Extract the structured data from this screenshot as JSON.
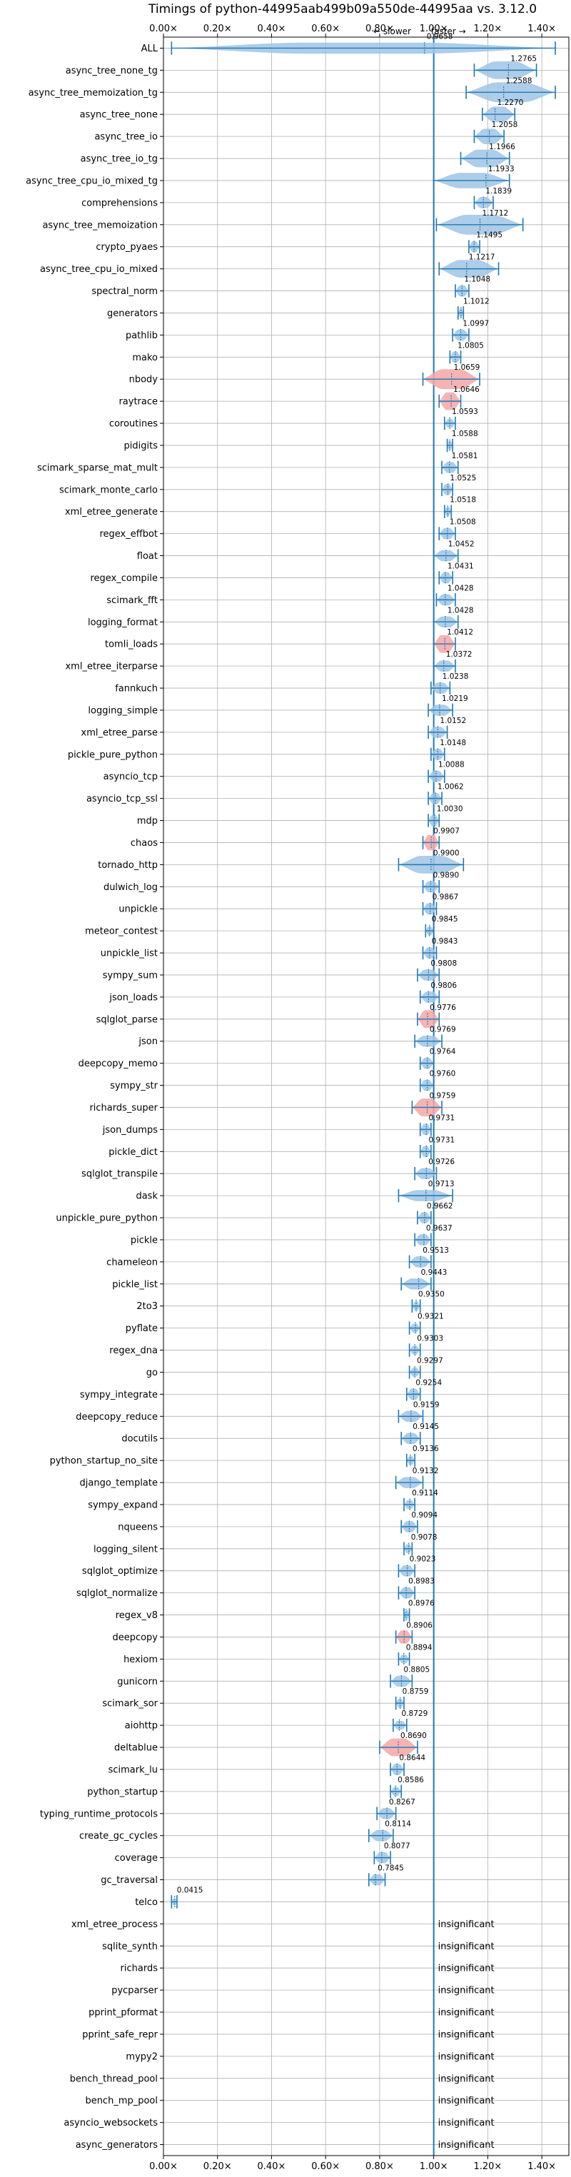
{
  "chart_data": {
    "type": "violin",
    "title": "Timings of python-44995aab499b09a550de-44995aa vs. 3.12.0",
    "annotation_slower": "← slower",
    "annotation_faster": "faster →",
    "reference_value": 1.0,
    "xlim": [
      0.0,
      1.5
    ],
    "x_ticks": [
      {
        "value": 0.0,
        "label": "0.00×"
      },
      {
        "value": 0.2,
        "label": "0.20×"
      },
      {
        "value": 0.4,
        "label": "0.40×"
      },
      {
        "value": 0.6,
        "label": "0.60×"
      },
      {
        "value": 0.8,
        "label": "0.80×"
      },
      {
        "value": 1.0,
        "label": "1.00×"
      },
      {
        "value": 1.2,
        "label": "1.20×"
      },
      {
        "value": 1.4,
        "label": "1.40×"
      }
    ],
    "grid": true,
    "colors": {
      "violin": "#9fc4e4",
      "highlight_violin": "#f4a6a6",
      "line": "#1f77b4",
      "grid": "#b0b0b0"
    },
    "insignificant_label": "insignificant",
    "rows": [
      {
        "name": "ALL",
        "value": 0.9658,
        "label": "0.9658",
        "lo": 0.03,
        "hi": 1.45,
        "w": 0.5
      },
      {
        "name": "async_tree_none_tg",
        "value": 1.2765,
        "label": "1.2765",
        "lo": 1.15,
        "hi": 1.38,
        "w": 0.8
      },
      {
        "name": "async_tree_memoization_tg",
        "value": 1.2588,
        "label": "1.2588",
        "lo": 1.12,
        "hi": 1.45,
        "w": 0.9
      },
      {
        "name": "async_tree_none",
        "value": 1.227,
        "label": "1.2270",
        "lo": 1.18,
        "hi": 1.3,
        "w": 0.7
      },
      {
        "name": "async_tree_io",
        "value": 1.2058,
        "label": "1.2058",
        "lo": 1.15,
        "hi": 1.26,
        "w": 0.7
      },
      {
        "name": "async_tree_io_tg",
        "value": 1.1966,
        "label": "1.1966",
        "lo": 1.1,
        "hi": 1.28,
        "w": 0.8
      },
      {
        "name": "async_tree_cpu_io_mixed_tg",
        "value": 1.1933,
        "label": "1.1933",
        "lo": 1.0,
        "hi": 1.28,
        "w": 0.7
      },
      {
        "name": "comprehensions",
        "value": 1.1839,
        "label": "1.1839",
        "lo": 1.15,
        "hi": 1.22,
        "w": 0.5
      },
      {
        "name": "async_tree_memoization",
        "value": 1.1712,
        "label": "1.1712",
        "lo": 1.01,
        "hi": 1.33,
        "w": 0.9
      },
      {
        "name": "crypto_pyaes",
        "value": 1.1495,
        "label": "1.1495",
        "lo": 1.13,
        "hi": 1.17,
        "w": 0.5
      },
      {
        "name": "async_tree_cpu_io_mixed",
        "value": 1.1217,
        "label": "1.1217",
        "lo": 1.02,
        "hi": 1.24,
        "w": 0.8
      },
      {
        "name": "spectral_norm",
        "value": 1.1048,
        "label": "1.1048",
        "lo": 1.08,
        "hi": 1.13,
        "w": 0.5
      },
      {
        "name": "generators",
        "value": 1.1012,
        "label": "1.1012",
        "lo": 1.09,
        "hi": 1.11,
        "w": 0.4
      },
      {
        "name": "pathlib",
        "value": 1.0997,
        "label": "1.0997",
        "lo": 1.07,
        "hi": 1.13,
        "w": 0.5
      },
      {
        "name": "mako",
        "value": 1.0805,
        "label": "1.0805",
        "lo": 1.06,
        "hi": 1.1,
        "w": 0.5
      },
      {
        "name": "nbody",
        "value": 1.0659,
        "label": "1.0659",
        "lo": 0.96,
        "hi": 1.17,
        "w": 0.9,
        "red": true
      },
      {
        "name": "raytrace",
        "value": 1.0646,
        "label": "1.0646",
        "lo": 1.02,
        "hi": 1.1,
        "w": 0.8,
        "red": true
      },
      {
        "name": "coroutines",
        "value": 1.0593,
        "label": "1.0593",
        "lo": 1.04,
        "hi": 1.08,
        "w": 0.4
      },
      {
        "name": "pidigits",
        "value": 1.0588,
        "label": "1.0588",
        "lo": 1.05,
        "hi": 1.07,
        "w": 0.4
      },
      {
        "name": "scimark_sparse_mat_mult",
        "value": 1.0581,
        "label": "1.0581",
        "lo": 1.03,
        "hi": 1.09,
        "w": 0.5
      },
      {
        "name": "scimark_monte_carlo",
        "value": 1.0525,
        "label": "1.0525",
        "lo": 1.03,
        "hi": 1.07,
        "w": 0.5
      },
      {
        "name": "xml_etree_generate",
        "value": 1.0518,
        "label": "1.0518",
        "lo": 1.04,
        "hi": 1.065,
        "w": 0.4
      },
      {
        "name": "regex_effbot",
        "value": 1.0508,
        "label": "1.0508",
        "lo": 1.02,
        "hi": 1.08,
        "w": 0.5
      },
      {
        "name": "float",
        "value": 1.0452,
        "label": "1.0452",
        "lo": 1.0,
        "hi": 1.09,
        "w": 0.5
      },
      {
        "name": "regex_compile",
        "value": 1.0431,
        "label": "1.0431",
        "lo": 1.02,
        "hi": 1.07,
        "w": 0.5
      },
      {
        "name": "scimark_fft",
        "value": 1.0428,
        "label": "1.0428",
        "lo": 1.01,
        "hi": 1.08,
        "w": 0.5
      },
      {
        "name": "logging_format",
        "value": 1.0428,
        "label": "1.0428",
        "lo": 1.0,
        "hi": 1.09,
        "w": 0.5
      },
      {
        "name": "tomli_loads",
        "value": 1.0412,
        "label": "1.0412",
        "lo": 1.0,
        "hi": 1.08,
        "w": 0.8,
        "red": true
      },
      {
        "name": "xml_etree_iterparse",
        "value": 1.0372,
        "label": "1.0372",
        "lo": 1.0,
        "hi": 1.08,
        "w": 0.5
      },
      {
        "name": "fannkuch",
        "value": 1.0238,
        "label": "1.0238",
        "lo": 0.99,
        "hi": 1.06,
        "w": 0.5
      },
      {
        "name": "logging_simple",
        "value": 1.0219,
        "label": "1.0219",
        "lo": 0.98,
        "hi": 1.07,
        "w": 0.5
      },
      {
        "name": "xml_etree_parse",
        "value": 1.0152,
        "label": "1.0152",
        "lo": 0.98,
        "hi": 1.05,
        "w": 0.5
      },
      {
        "name": "pickle_pure_python",
        "value": 1.0148,
        "label": "1.0148",
        "lo": 0.99,
        "hi": 1.04,
        "w": 0.5
      },
      {
        "name": "asyncio_tcp",
        "value": 1.0088,
        "label": "1.0088",
        "lo": 0.98,
        "hi": 1.04,
        "w": 0.5
      },
      {
        "name": "asyncio_tcp_ssl",
        "value": 1.0062,
        "label": "1.0062",
        "lo": 0.98,
        "hi": 1.03,
        "w": 0.5
      },
      {
        "name": "mdp",
        "value": 1.003,
        "label": "1.0030",
        "lo": 0.98,
        "hi": 1.02,
        "w": 0.5
      },
      {
        "name": "chaos",
        "value": 0.9907,
        "label": "0.9907",
        "lo": 0.96,
        "hi": 1.02,
        "w": 0.7,
        "red": true
      },
      {
        "name": "tornado_http",
        "value": 0.99,
        "label": "0.9900",
        "lo": 0.87,
        "hi": 1.11,
        "w": 0.8
      },
      {
        "name": "dulwich_log",
        "value": 0.989,
        "label": "0.9890",
        "lo": 0.96,
        "hi": 1.02,
        "w": 0.5
      },
      {
        "name": "unpickle",
        "value": 0.9867,
        "label": "0.9867",
        "lo": 0.96,
        "hi": 1.01,
        "w": 0.5
      },
      {
        "name": "meteor_contest",
        "value": 0.9845,
        "label": "0.9845",
        "lo": 0.97,
        "hi": 1.0,
        "w": 0.4
      },
      {
        "name": "unpickle_list",
        "value": 0.9843,
        "label": "0.9843",
        "lo": 0.96,
        "hi": 1.01,
        "w": 0.5
      },
      {
        "name": "sympy_sum",
        "value": 0.9808,
        "label": "0.9808",
        "lo": 0.94,
        "hi": 1.02,
        "w": 0.5
      },
      {
        "name": "json_loads",
        "value": 0.9806,
        "label": "0.9806",
        "lo": 0.95,
        "hi": 1.02,
        "w": 0.5
      },
      {
        "name": "sqlglot_parse",
        "value": 0.9776,
        "label": "0.9776",
        "lo": 0.94,
        "hi": 1.02,
        "w": 0.8,
        "red": true
      },
      {
        "name": "json",
        "value": 0.9769,
        "label": "0.9769",
        "lo": 0.93,
        "hi": 1.03,
        "w": 0.5
      },
      {
        "name": "deepcopy_memo",
        "value": 0.9764,
        "label": "0.9764",
        "lo": 0.95,
        "hi": 1.0,
        "w": 0.5
      },
      {
        "name": "sympy_str",
        "value": 0.976,
        "label": "0.9760",
        "lo": 0.95,
        "hi": 1.0,
        "w": 0.5
      },
      {
        "name": "richards_super",
        "value": 0.9759,
        "label": "0.9759",
        "lo": 0.92,
        "hi": 1.03,
        "w": 0.8,
        "red": true
      },
      {
        "name": "json_dumps",
        "value": 0.9731,
        "label": "0.9731",
        "lo": 0.95,
        "hi": 0.99,
        "w": 0.5
      },
      {
        "name": "pickle_dict",
        "value": 0.9731,
        "label": "0.9731",
        "lo": 0.95,
        "hi": 0.99,
        "w": 0.5
      },
      {
        "name": "sqlglot_transpile",
        "value": 0.9726,
        "label": "0.9726",
        "lo": 0.93,
        "hi": 1.01,
        "w": 0.5
      },
      {
        "name": "dask",
        "value": 0.9713,
        "label": "0.9713",
        "lo": 0.87,
        "hi": 1.07,
        "w": 0.5
      },
      {
        "name": "unpickle_pure_python",
        "value": 0.9662,
        "label": "0.9662",
        "lo": 0.94,
        "hi": 0.99,
        "w": 0.5
      },
      {
        "name": "pickle",
        "value": 0.9637,
        "label": "0.9637",
        "lo": 0.93,
        "hi": 0.99,
        "w": 0.5
      },
      {
        "name": "chameleon",
        "value": 0.9513,
        "label": "0.9513",
        "lo": 0.91,
        "hi": 0.99,
        "w": 0.5
      },
      {
        "name": "pickle_list",
        "value": 0.9443,
        "label": "0.9443",
        "lo": 0.88,
        "hi": 0.99,
        "w": 0.5
      },
      {
        "name": "2to3",
        "value": 0.935,
        "label": "0.9350",
        "lo": 0.92,
        "hi": 0.95,
        "w": 0.4
      },
      {
        "name": "pyflate",
        "value": 0.9321,
        "label": "0.9321",
        "lo": 0.91,
        "hi": 0.95,
        "w": 0.4
      },
      {
        "name": "regex_dna",
        "value": 0.9303,
        "label": "0.9303",
        "lo": 0.91,
        "hi": 0.95,
        "w": 0.4
      },
      {
        "name": "go",
        "value": 0.9297,
        "label": "0.9297",
        "lo": 0.91,
        "hi": 0.95,
        "w": 0.4
      },
      {
        "name": "sympy_integrate",
        "value": 0.9254,
        "label": "0.9254",
        "lo": 0.9,
        "hi": 0.95,
        "w": 0.5
      },
      {
        "name": "deepcopy_reduce",
        "value": 0.9159,
        "label": "0.9159",
        "lo": 0.87,
        "hi": 0.96,
        "w": 0.5
      },
      {
        "name": "docutils",
        "value": 0.9145,
        "label": "0.9145",
        "lo": 0.88,
        "hi": 0.95,
        "w": 0.5
      },
      {
        "name": "python_startup_no_site",
        "value": 0.9136,
        "label": "0.9136",
        "lo": 0.9,
        "hi": 0.93,
        "w": 0.4
      },
      {
        "name": "django_template",
        "value": 0.9132,
        "label": "0.9132",
        "lo": 0.86,
        "hi": 0.96,
        "w": 0.5
      },
      {
        "name": "sympy_expand",
        "value": 0.9114,
        "label": "0.9114",
        "lo": 0.89,
        "hi": 0.93,
        "w": 0.4
      },
      {
        "name": "nqueens",
        "value": 0.9094,
        "label": "0.9094",
        "lo": 0.88,
        "hi": 0.94,
        "w": 0.5
      },
      {
        "name": "logging_silent",
        "value": 0.9078,
        "label": "0.9078",
        "lo": 0.89,
        "hi": 0.92,
        "w": 0.4
      },
      {
        "name": "sqlglot_optimize",
        "value": 0.9023,
        "label": "0.9023",
        "lo": 0.87,
        "hi": 0.93,
        "w": 0.5
      },
      {
        "name": "sqlglot_normalize",
        "value": 0.8983,
        "label": "0.8983",
        "lo": 0.87,
        "hi": 0.93,
        "w": 0.5
      },
      {
        "name": "regex_v8",
        "value": 0.8976,
        "label": "0.8976",
        "lo": 0.89,
        "hi": 0.91,
        "w": 0.4
      },
      {
        "name": "deepcopy",
        "value": 0.8906,
        "label": "0.8906",
        "lo": 0.86,
        "hi": 0.92,
        "w": 0.6,
        "red": true
      },
      {
        "name": "hexiom",
        "value": 0.8894,
        "label": "0.8894",
        "lo": 0.87,
        "hi": 0.91,
        "w": 0.4
      },
      {
        "name": "gunicorn",
        "value": 0.8805,
        "label": "0.8805",
        "lo": 0.84,
        "hi": 0.92,
        "w": 0.5
      },
      {
        "name": "scimark_sor",
        "value": 0.8759,
        "label": "0.8759",
        "lo": 0.86,
        "hi": 0.89,
        "w": 0.4
      },
      {
        "name": "aiohttp",
        "value": 0.8729,
        "label": "0.8729",
        "lo": 0.85,
        "hi": 0.9,
        "w": 0.4
      },
      {
        "name": "deltablue",
        "value": 0.869,
        "label": "0.8690",
        "lo": 0.8,
        "hi": 0.94,
        "w": 0.8,
        "red": true
      },
      {
        "name": "scimark_lu",
        "value": 0.8644,
        "label": "0.8644",
        "lo": 0.84,
        "hi": 0.89,
        "w": 0.5
      },
      {
        "name": "python_startup",
        "value": 0.8586,
        "label": "0.8586",
        "lo": 0.84,
        "hi": 0.88,
        "w": 0.4
      },
      {
        "name": "typing_runtime_protocols",
        "value": 0.8267,
        "label": "0.8267",
        "lo": 0.79,
        "hi": 0.86,
        "w": 0.5
      },
      {
        "name": "create_gc_cycles",
        "value": 0.8114,
        "label": "0.8114",
        "lo": 0.76,
        "hi": 0.85,
        "w": 0.5
      },
      {
        "name": "coverage",
        "value": 0.8077,
        "label": "0.8077",
        "lo": 0.78,
        "hi": 0.84,
        "w": 0.5
      },
      {
        "name": "gc_traversal",
        "value": 0.7845,
        "label": "0.7845",
        "lo": 0.76,
        "hi": 0.82,
        "w": 0.5
      },
      {
        "name": "telco",
        "value": 0.0415,
        "label": "0.0415",
        "lo": 0.03,
        "hi": 0.05,
        "w": 0.3
      },
      {
        "name": "xml_etree_process",
        "insignificant": true
      },
      {
        "name": "sqlite_synth",
        "insignificant": true
      },
      {
        "name": "richards",
        "insignificant": true
      },
      {
        "name": "pycparser",
        "insignificant": true
      },
      {
        "name": "pprint_pformat",
        "insignificant": true
      },
      {
        "name": "pprint_safe_repr",
        "insignificant": true
      },
      {
        "name": "mypy2",
        "insignificant": true
      },
      {
        "name": "bench_thread_pool",
        "insignificant": true
      },
      {
        "name": "bench_mp_pool",
        "insignificant": true
      },
      {
        "name": "asyncio_websockets",
        "insignificant": true
      },
      {
        "name": "async_generators",
        "insignificant": true
      }
    ]
  }
}
